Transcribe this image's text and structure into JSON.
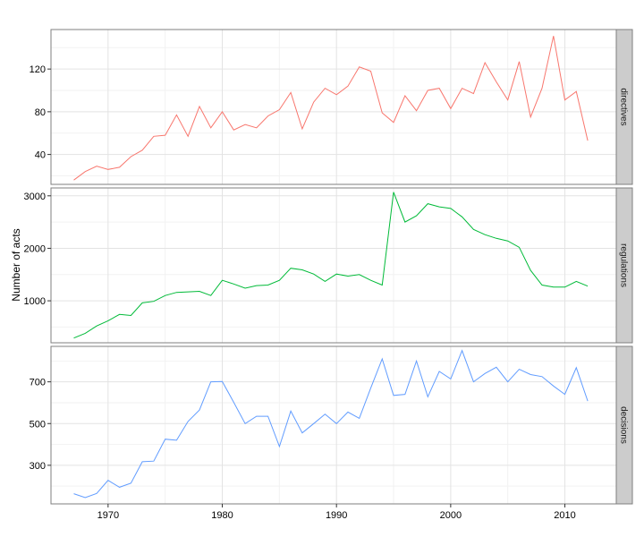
{
  "chart_data": {
    "type": "line",
    "ylabel": "Number of acts",
    "xlabel": "",
    "title": "",
    "x_ticks": [
      1970,
      1980,
      1990,
      2000,
      2010
    ],
    "xlim": [
      1965,
      2014.5
    ],
    "grid": true,
    "legend": "none",
    "facet_strip_position": "right",
    "x": [
      1967,
      1968,
      1969,
      1970,
      1971,
      1972,
      1973,
      1974,
      1975,
      1976,
      1977,
      1978,
      1979,
      1980,
      1981,
      1982,
      1983,
      1984,
      1985,
      1986,
      1987,
      1988,
      1989,
      1990,
      1991,
      1992,
      1993,
      1994,
      1995,
      1996,
      1997,
      1998,
      1999,
      2000,
      2001,
      2002,
      2003,
      2004,
      2005,
      2006,
      2007,
      2008,
      2009,
      2010,
      2011,
      2012
    ],
    "series": [
      {
        "name": "directives",
        "color": "#F8766D",
        "ylim": [
          12,
          157
        ],
        "y_ticks": [
          40,
          80,
          120
        ],
        "values": [
          16,
          24,
          29,
          26,
          28,
          38,
          44,
          57,
          58,
          77,
          57,
          85,
          65,
          80,
          63,
          68,
          65,
          76,
          82,
          98,
          64,
          89,
          102,
          96,
          104,
          122,
          118,
          79,
          70,
          95,
          81,
          100,
          102,
          83,
          102,
          97,
          126,
          108,
          91,
          127,
          75,
          102,
          151,
          91,
          99,
          53
        ]
      },
      {
        "name": "regulations",
        "color": "#00BA38",
        "ylim": [
          200,
          3150
        ],
        "y_ticks": [
          1000,
          2000,
          3000
        ],
        "values": [
          290,
          380,
          520,
          620,
          740,
          720,
          960,
          990,
          1100,
          1160,
          1170,
          1180,
          1100,
          1390,
          1320,
          1240,
          1290,
          1300,
          1390,
          1620,
          1590,
          1510,
          1370,
          1510,
          1470,
          1500,
          1390,
          1300,
          3070,
          2500,
          2620,
          2850,
          2790,
          2760,
          2600,
          2360,
          2260,
          2190,
          2140,
          2020,
          1580,
          1300,
          1260,
          1260,
          1370,
          1280
        ]
      },
      {
        "name": "decisions",
        "color": "#619CFF",
        "ylim": [
          115,
          870
        ],
        "y_ticks": [
          300,
          500,
          700
        ],
        "values": [
          164,
          145,
          165,
          228,
          195,
          214,
          317,
          320,
          425,
          420,
          510,
          565,
          700,
          702,
          602,
          500,
          535,
          535,
          390,
          560,
          455,
          500,
          545,
          500,
          555,
          525,
          670,
          810,
          635,
          640,
          800,
          628,
          750,
          714,
          850,
          700,
          740,
          770,
          700,
          760,
          735,
          725,
          680,
          640,
          768,
          608
        ]
      }
    ]
  }
}
